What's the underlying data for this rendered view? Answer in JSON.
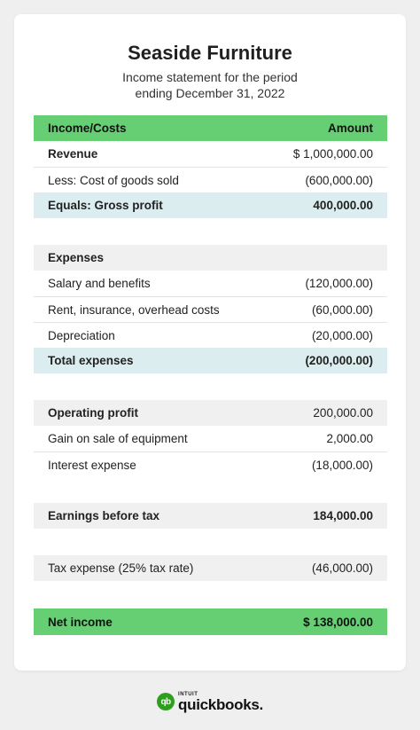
{
  "title": "Seaside Furniture",
  "subtitle": [
    "Income statement for the period",
    "ending December 31, 2022"
  ],
  "header": {
    "label": "Income/Costs",
    "amount": "Amount"
  },
  "rows": [
    {
      "label": "Revenue",
      "amount": "$ 1,000,000.00"
    },
    {
      "label": "Less: Cost of goods sold",
      "amount": "(600,000.00)"
    },
    {
      "label": "Equals: Gross profit",
      "amount": "400,000.00"
    },
    {
      "label": "Expenses",
      "amount": ""
    },
    {
      "label": "Salary and benefits",
      "amount": "(120,000.00)"
    },
    {
      "label": "Rent, insurance, overhead costs",
      "amount": "(60,000.00)"
    },
    {
      "label": "Depreciation",
      "amount": "(20,000.00)"
    },
    {
      "label": "Total expenses",
      "amount": "(200,000.00)"
    },
    {
      "label": "Operating profit",
      "amount": "200,000.00"
    },
    {
      "label": "Gain on sale of equipment",
      "amount": "2,000.00"
    },
    {
      "label": "Interest expense",
      "amount": "(18,000.00)"
    },
    {
      "label": "Earnings before tax",
      "amount": "184,000.00"
    },
    {
      "label": "Tax expense (25% tax rate)",
      "amount": "(46,000.00)"
    },
    {
      "label": "Net income",
      "amount": "$ 138,000.00"
    }
  ],
  "brand": {
    "mark": "qb",
    "small": "INTUIT",
    "name": "quickbooks.",
    "color": "#2ca01c"
  },
  "colors": {
    "header_green": "#66cf74",
    "highlight_blue": "#dcedf0",
    "band_gray": "#f0f0f0"
  }
}
